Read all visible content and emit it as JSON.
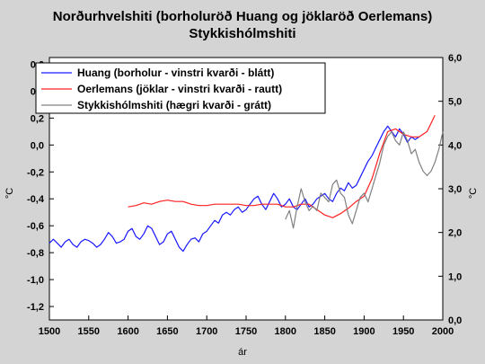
{
  "chart_data": {
    "type": "line",
    "title_line1": "Norðurhvelshiti (borholuröð Huang og jöklaröð Oerlemans)",
    "title_line2": "Stykkishólmshiti",
    "xlabel": "ár",
    "ylabel_left": "°C",
    "ylabel_right": "°C",
    "xlim": [
      1500,
      2000
    ],
    "ylim_left": [
      -1.3,
      0.65
    ],
    "ylim_right": [
      0,
      6
    ],
    "x_ticks": [
      "1500",
      "1550",
      "1600",
      "1650",
      "1700",
      "1750",
      "1800",
      "1850",
      "1900",
      "1950",
      "2000"
    ],
    "y_left_ticks": [
      "0,6",
      "0,4",
      "0,2",
      "0,0",
      "-0,2",
      "-0,4",
      "-0,6",
      "-0,8",
      "-1,0",
      "-1,2"
    ],
    "y_right_ticks": [
      "0,0",
      "1,0",
      "2,0",
      "3,0",
      "4,0",
      "5,0",
      "6,0"
    ],
    "legend_position": "top-left",
    "grid": false,
    "series": [
      {
        "name": "Huang (borholur - vinstri kvarði - blátt)",
        "axis": "left",
        "color": "#1a1aff",
        "x": [
          1500,
          1505,
          1510,
          1515,
          1520,
          1525,
          1530,
          1535,
          1540,
          1545,
          1550,
          1555,
          1560,
          1565,
          1570,
          1575,
          1580,
          1585,
          1590,
          1595,
          1600,
          1605,
          1610,
          1615,
          1620,
          1625,
          1630,
          1635,
          1640,
          1645,
          1650,
          1655,
          1660,
          1665,
          1670,
          1675,
          1680,
          1685,
          1690,
          1695,
          1700,
          1705,
          1710,
          1715,
          1720,
          1725,
          1730,
          1735,
          1740,
          1745,
          1750,
          1755,
          1760,
          1765,
          1770,
          1775,
          1780,
          1785,
          1790,
          1795,
          1800,
          1805,
          1810,
          1815,
          1820,
          1825,
          1830,
          1835,
          1840,
          1845,
          1850,
          1855,
          1860,
          1865,
          1870,
          1875,
          1880,
          1885,
          1890,
          1895,
          1900,
          1905,
          1910,
          1915,
          1920,
          1925,
          1930,
          1935,
          1940,
          1945,
          1950,
          1955,
          1960,
          1965,
          1970
        ],
        "y": [
          -0.73,
          -0.7,
          -0.73,
          -0.76,
          -0.72,
          -0.7,
          -0.74,
          -0.76,
          -0.72,
          -0.7,
          -0.71,
          -0.73,
          -0.76,
          -0.74,
          -0.7,
          -0.65,
          -0.68,
          -0.73,
          -0.72,
          -0.7,
          -0.64,
          -0.62,
          -0.68,
          -0.7,
          -0.66,
          -0.6,
          -0.62,
          -0.68,
          -0.74,
          -0.72,
          -0.66,
          -0.64,
          -0.7,
          -0.76,
          -0.79,
          -0.74,
          -0.7,
          -0.69,
          -0.72,
          -0.66,
          -0.64,
          -0.6,
          -0.56,
          -0.58,
          -0.52,
          -0.5,
          -0.52,
          -0.48,
          -0.46,
          -0.5,
          -0.48,
          -0.44,
          -0.4,
          -0.38,
          -0.44,
          -0.48,
          -0.42,
          -0.36,
          -0.4,
          -0.46,
          -0.44,
          -0.4,
          -0.46,
          -0.48,
          -0.44,
          -0.4,
          -0.46,
          -0.44,
          -0.4,
          -0.38,
          -0.36,
          -0.4,
          -0.42,
          -0.36,
          -0.32,
          -0.34,
          -0.28,
          -0.32,
          -0.3,
          -0.24,
          -0.18,
          -0.12,
          -0.08,
          -0.02,
          0.04,
          0.1,
          0.14,
          0.1,
          0.06,
          0.12,
          0.08,
          0.02,
          0.06,
          0.04,
          0.06
        ]
      },
      {
        "name": "Oerlemans (jöklar - vinstri kvarði - rautt)",
        "axis": "left",
        "color": "#ff2020",
        "x": [
          1600,
          1610,
          1620,
          1630,
          1640,
          1650,
          1660,
          1670,
          1680,
          1690,
          1700,
          1710,
          1720,
          1730,
          1740,
          1750,
          1760,
          1770,
          1780,
          1790,
          1800,
          1810,
          1820,
          1830,
          1840,
          1850,
          1860,
          1870,
          1880,
          1890,
          1900,
          1910,
          1920,
          1930,
          1940,
          1950,
          1960,
          1970,
          1980,
          1990
        ],
        "y": [
          -0.46,
          -0.45,
          -0.43,
          -0.44,
          -0.42,
          -0.41,
          -0.42,
          -0.42,
          -0.44,
          -0.45,
          -0.45,
          -0.44,
          -0.44,
          -0.44,
          -0.44,
          -0.45,
          -0.45,
          -0.44,
          -0.44,
          -0.44,
          -0.46,
          -0.46,
          -0.44,
          -0.44,
          -0.48,
          -0.52,
          -0.54,
          -0.51,
          -0.47,
          -0.42,
          -0.38,
          -0.25,
          -0.06,
          0.1,
          0.12,
          0.08,
          0.06,
          0.06,
          0.1,
          0.22
        ]
      },
      {
        "name": "Stykkishólmshiti (hægri kvarði - grátt)",
        "axis": "right",
        "color": "#808080",
        "x": [
          1800,
          1805,
          1810,
          1815,
          1820,
          1825,
          1830,
          1835,
          1840,
          1845,
          1850,
          1855,
          1860,
          1865,
          1870,
          1875,
          1880,
          1885,
          1890,
          1895,
          1900,
          1905,
          1910,
          1915,
          1920,
          1925,
          1930,
          1935,
          1940,
          1945,
          1950,
          1955,
          1960,
          1965,
          1970,
          1975,
          1980,
          1985,
          1990,
          1995,
          2000
        ],
        "y": [
          2.3,
          2.5,
          2.1,
          2.6,
          3.0,
          2.7,
          2.5,
          2.6,
          2.5,
          2.9,
          2.8,
          2.7,
          3.1,
          3.2,
          2.9,
          2.8,
          2.4,
          2.2,
          2.5,
          2.8,
          2.9,
          2.7,
          3.0,
          3.3,
          3.6,
          4.0,
          4.2,
          4.3,
          4.1,
          4.0,
          4.3,
          4.1,
          3.8,
          3.9,
          3.6,
          3.4,
          3.3,
          3.4,
          3.6,
          3.9,
          4.3
        ]
      }
    ]
  }
}
